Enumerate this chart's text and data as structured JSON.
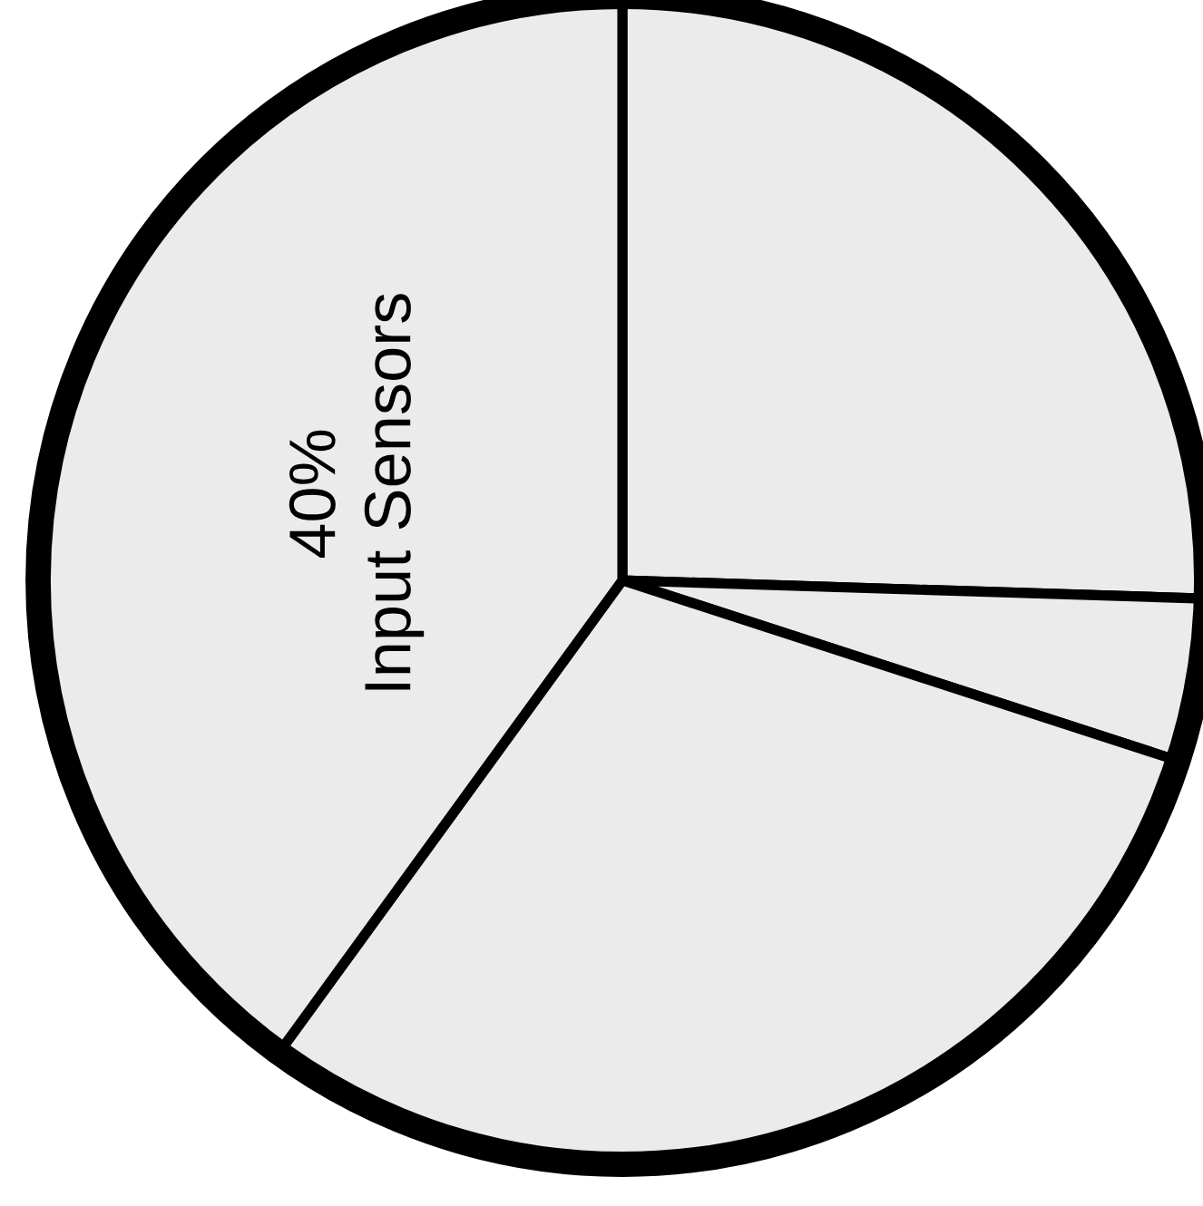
{
  "chart_data": {
    "type": "pie",
    "categories": [
      null,
      null,
      null,
      "Input Sensors"
    ],
    "values": [
      25.5,
      4.5,
      30,
      40
    ],
    "value_labels": [
      null,
      null,
      null,
      "40%"
    ],
    "colors": [
      "#ebebeb",
      "#ebebeb",
      "#ebebeb",
      "#ebebeb"
    ],
    "legend": false
  }
}
